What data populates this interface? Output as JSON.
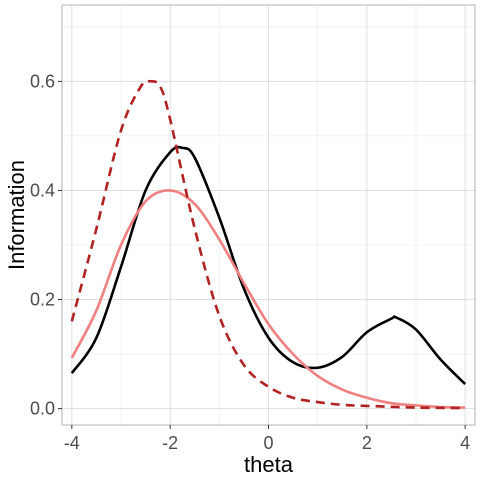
{
  "chart_data": {
    "type": "line",
    "title": "",
    "xlabel": "theta",
    "ylabel": "Information",
    "xlim": [
      -4.2,
      4.2
    ],
    "ylim": [
      -0.03,
      0.74
    ],
    "x_ticks": [
      -4,
      -2,
      0,
      2,
      4
    ],
    "x_tick_labels": [
      "-4",
      "-2",
      "0",
      "2",
      "4"
    ],
    "y_ticks": [
      0.0,
      0.2,
      0.4,
      0.6
    ],
    "y_tick_labels": [
      "0.0",
      "0.2",
      "0.4",
      "0.6"
    ],
    "grid": true,
    "legend": "none",
    "series": [
      {
        "style": "solid",
        "color": "#000000",
        "x": [
          -4,
          -3.5,
          -3,
          -2.5,
          -2,
          -1.75,
          -1.5,
          -1,
          -0.5,
          0,
          0.5,
          1,
          1.5,
          2,
          2.5,
          2.6,
          3,
          3.5,
          4
        ],
        "y": [
          0.065,
          0.13,
          0.26,
          0.4,
          0.47,
          0.478,
          0.46,
          0.35,
          0.22,
          0.13,
          0.085,
          0.075,
          0.095,
          0.14,
          0.165,
          0.167,
          0.145,
          0.09,
          0.045
        ]
      },
      {
        "style": "dashed",
        "color": "#b22222",
        "x": [
          -4,
          -3.5,
          -3,
          -2.6,
          -2.4,
          -2.2,
          -2,
          -1.5,
          -1,
          -0.5,
          0,
          0.5,
          1,
          1.5,
          2,
          3,
          4
        ],
        "y": [
          0.16,
          0.33,
          0.51,
          0.59,
          0.6,
          0.59,
          0.53,
          0.33,
          0.17,
          0.08,
          0.04,
          0.02,
          0.012,
          0.007,
          0.005,
          0.002,
          0.001
        ]
      },
      {
        "style": "solid",
        "color": "#f08080",
        "x": [
          -4,
          -3.5,
          -3,
          -2.5,
          -2,
          -1.5,
          -1,
          -0.5,
          0,
          0.5,
          1,
          1.5,
          2,
          2.5,
          3,
          3.5,
          4
        ],
        "y": [
          0.093,
          0.18,
          0.3,
          0.38,
          0.4,
          0.375,
          0.31,
          0.23,
          0.155,
          0.1,
          0.06,
          0.035,
          0.02,
          0.01,
          0.006,
          0.003,
          0.002
        ]
      }
    ]
  }
}
